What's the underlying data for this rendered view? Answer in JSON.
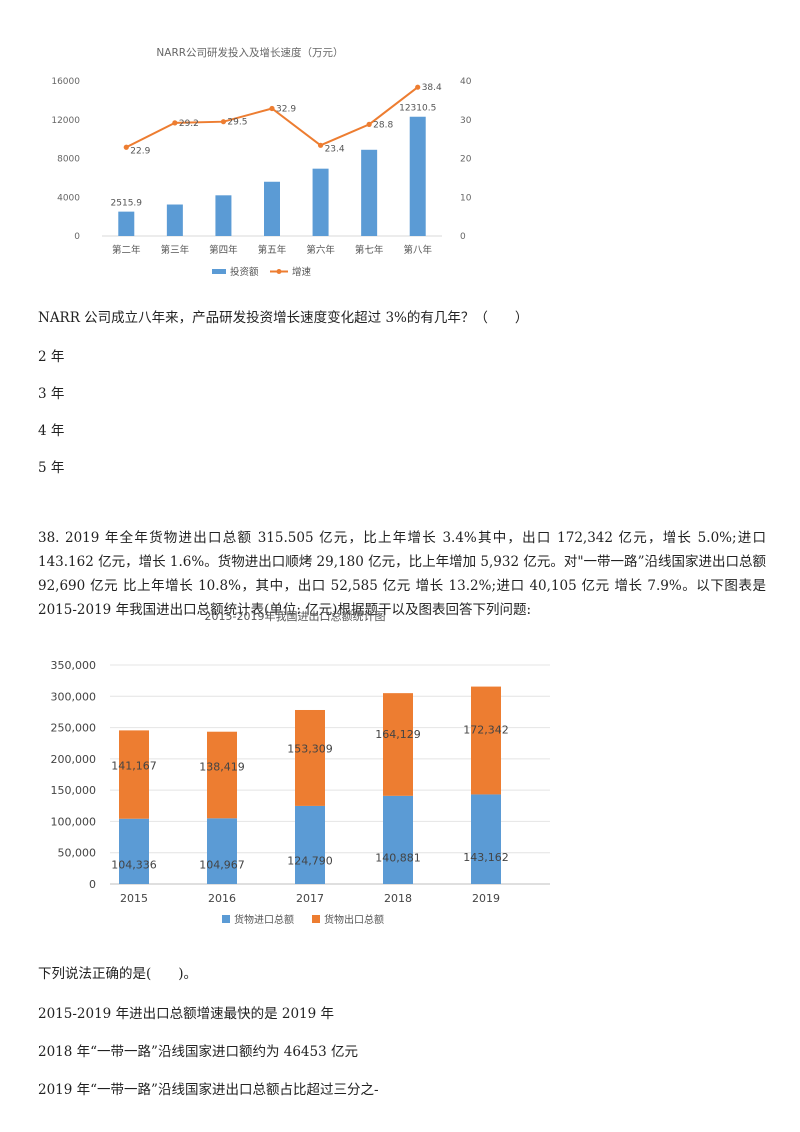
{
  "chart1": {
    "chart_data": {
      "type": "bar+line",
      "title": "NARR公司研发投入及增长速度（万元）",
      "categories": [
        "第二年",
        "第三年",
        "第四年",
        "第五年",
        "第六年",
        "第七年",
        "第八年"
      ],
      "bar_series": {
        "name": "投资额",
        "values": [
          2515.9,
          3250,
          4200,
          5600,
          6950,
          8900,
          12310.5
        ],
        "labels": [
          "2515.9",
          "",
          "",
          "",
          "",
          "",
          "12310.5"
        ]
      },
      "line_series": {
        "name": "增速",
        "values": [
          22.9,
          29.2,
          29.5,
          32.9,
          23.4,
          28.8,
          38.4
        ],
        "labels": [
          "22.9",
          "29.2",
          "29.5",
          "32.9",
          "23.4",
          "28.8",
          "38.4"
        ]
      },
      "left_axis": {
        "ylim": [
          0,
          16000
        ],
        "ticks": [
          "0",
          "4000",
          "8000",
          "12000",
          "16000"
        ]
      },
      "right_axis": {
        "ylim": [
          0,
          40
        ],
        "ticks": [
          "0",
          "10",
          "20",
          "30",
          "40"
        ]
      },
      "legend": "bottom",
      "colors": {
        "bar": "#5b9bd5",
        "line": "#ed7d31"
      }
    }
  },
  "q1": {
    "stem": "NARR 公司成立八年来，产品研发投资增长速度变化超过 3%的有几年？（　　）",
    "options": [
      "2 年",
      "3 年",
      "4 年",
      "5 年"
    ]
  },
  "q2": {
    "para": "38. 2019 年全年货物进出口总额 315.505 亿元，比上年增长 3.4%其中，出口 172,342 亿元，增长 5.0%;进口 143.162 亿元，增长 1.6%。货物进出口顺烤 29,180 亿元，比上年增加 5,932 亿元。对\"一带一路”沿线国家进出口总额 92,690 亿元 比上年增长 10.8%，其中，出口 52,585 亿元 增长 13.2%;进口 40,105 亿元 增长 7.9%。以下图表是 2015-2019 年我国进出口总额统计表(单位: 亿元)根据题干以及图表回答下列问题:",
    "stem": "下列说法正确的是(　　)。",
    "options": [
      "2015-2019 年进出口总额增速最快的是 2019 年",
      "2018 年“一带一路”沿线国家进口额约为 46453 亿元",
      "2019 年“一带一路”沿线国家进出口总额占比超过三分之-"
    ]
  },
  "chart2": {
    "chart_data": {
      "type": "bar",
      "stacked": true,
      "title": "2015-2019年我国进出口总额统计图",
      "categories": [
        "2015",
        "2016",
        "2017",
        "2018",
        "2019"
      ],
      "series": [
        {
          "name": "货物进口总额",
          "values": [
            104336,
            104967,
            124790,
            140881,
            143162
          ],
          "labels": [
            "104,336",
            "104,967",
            "124,790",
            "140,881",
            "143,162"
          ]
        },
        {
          "name": "货物出口总额",
          "values": [
            141167,
            138419,
            153309,
            164129,
            172342
          ],
          "labels": [
            "141,167",
            "138,419",
            "153,309",
            "164,129",
            "172,342"
          ]
        }
      ],
      "ylim": [
        0,
        350000
      ],
      "ticks": [
        "0",
        "50,000",
        "100,000",
        "150,000",
        "200,000",
        "250,000",
        "300,000",
        "350,000"
      ],
      "grid": true,
      "legend": "bottom",
      "colors": {
        "import": "#5b9bd5",
        "export": "#ed7d31"
      }
    }
  }
}
